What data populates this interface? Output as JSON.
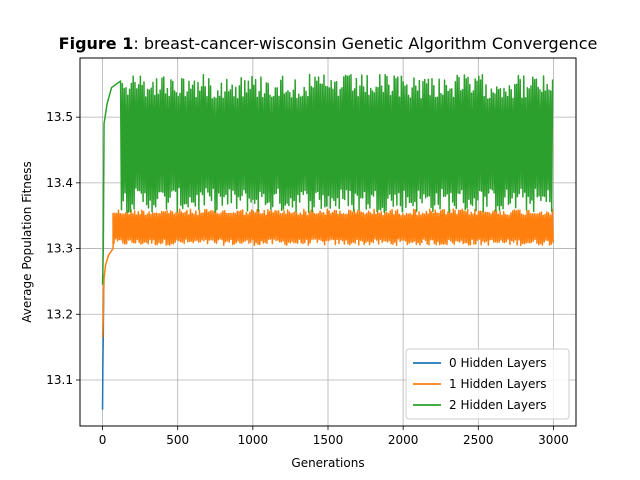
{
  "chart_data": {
    "type": "line",
    "title_prefix": "Figure 1",
    "title_rest": ": breast-cancer-wisconsin Genetic Algorithm Convergence",
    "xlabel": "Generations",
    "ylabel": "Average Population Fitness",
    "xlim": [
      -150,
      3150
    ],
    "ylim": [
      13.03,
      13.59
    ],
    "xticks": [
      0,
      500,
      1000,
      1500,
      2000,
      2500,
      3000
    ],
    "yticks": [
      13.1,
      13.2,
      13.3,
      13.4,
      13.5
    ],
    "ytick_labels": [
      "13.1",
      "13.2",
      "13.3",
      "13.4",
      "13.5"
    ],
    "grid": true,
    "legend_position": "lower-right",
    "series": [
      {
        "name": "0 Hidden Layers",
        "color": "#1f77b4",
        "points": [
          [
            0,
            13.055
          ],
          [
            1,
            13.09
          ],
          [
            2,
            13.12
          ],
          [
            3,
            13.14
          ],
          [
            4,
            13.155
          ],
          [
            5,
            13.165
          ],
          [
            6,
            13.2
          ],
          [
            8,
            13.24
          ]
        ]
      },
      {
        "name": "1 Hidden Layers",
        "color": "#ff7f0e",
        "start_points": [
          [
            0,
            13.165
          ],
          [
            5,
            13.2
          ],
          [
            10,
            13.255
          ],
          [
            20,
            13.275
          ],
          [
            40,
            13.29
          ],
          [
            70,
            13.3
          ]
        ],
        "band_start": 70,
        "band_end": 3000,
        "band_low": 13.305,
        "band_high": 13.36
      },
      {
        "name": "2 Hidden Layers",
        "color": "#2ca02c",
        "start_points": [
          [
            0,
            13.245
          ],
          [
            5,
            13.3
          ],
          [
            10,
            13.49
          ],
          [
            30,
            13.52
          ],
          [
            60,
            13.545
          ],
          [
            120,
            13.555
          ]
        ],
        "band_start": 120,
        "band_end": 3000,
        "band_low": 13.355,
        "band_high": 13.565
      }
    ]
  }
}
